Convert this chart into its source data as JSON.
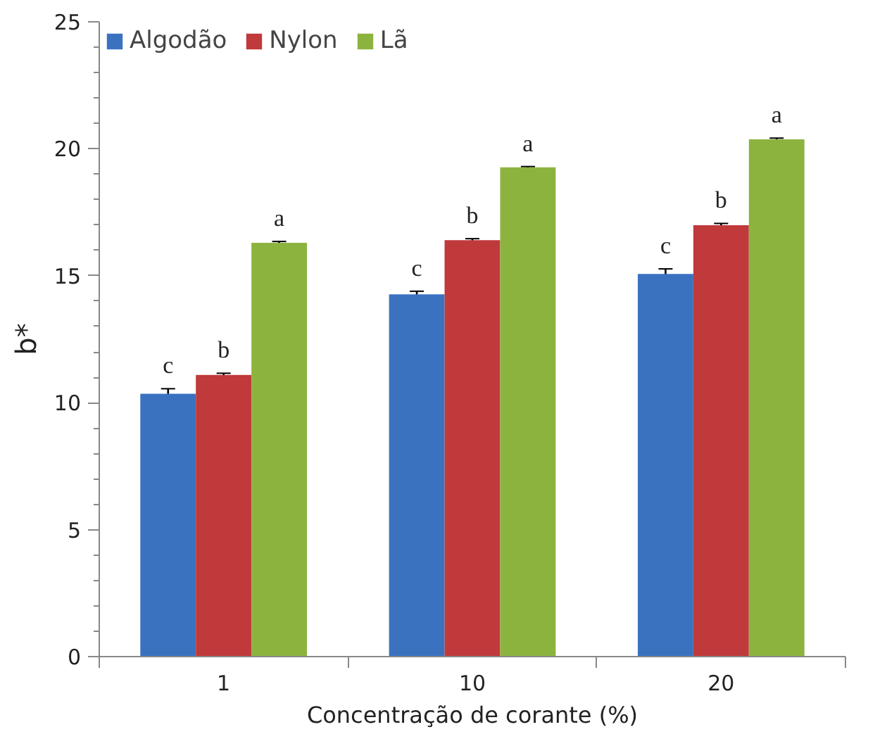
{
  "chart_data": {
    "type": "bar",
    "xlabel": "Concentração de corante (%)",
    "ylabel": "b*",
    "categories": [
      "1",
      "10",
      "20"
    ],
    "series": [
      {
        "name": "Algodão",
        "color": "#3a72c0",
        "values": [
          10.35,
          14.27,
          15.07
        ],
        "errors": [
          0.2,
          0.12,
          0.2
        ],
        "value_labels": [
          "c",
          "c",
          "c"
        ]
      },
      {
        "name": "Nylon",
        "color": "#c0393b",
        "values": [
          11.09,
          16.4,
          16.99
        ],
        "errors": [
          0.07,
          0.06,
          0.07
        ],
        "value_labels": [
          "b",
          "b",
          "b"
        ]
      },
      {
        "name": "Lã",
        "color": "#8db33f",
        "values": [
          16.3,
          19.27,
          20.37
        ],
        "errors": [
          0.05,
          0.03,
          0.05
        ],
        "value_labels": [
          "a",
          "a",
          "a"
        ]
      }
    ],
    "ylim": [
      0,
      25
    ],
    "yticks": [
      0,
      {
        "value": 1,
        "label": null
      },
      {
        "value": 2,
        "label": null
      },
      {
        "value": 3,
        "label": null
      },
      {
        "value": 4,
        "label": null
      },
      5,
      {
        "value": 6,
        "label": null
      },
      {
        "value": 7,
        "label": null
      },
      {
        "value": 8,
        "label": null
      },
      {
        "value": 9,
        "label": null
      },
      10,
      {
        "value": 11,
        "label": null
      },
      {
        "value": 12,
        "label": null
      },
      {
        "value": 13,
        "label": null
      },
      {
        "value": 14,
        "label": null
      },
      15,
      {
        "value": 16,
        "label": null
      },
      {
        "value": 17,
        "label": null
      },
      {
        "value": 18,
        "label": null
      },
      {
        "value": 19,
        "label": null
      },
      20,
      {
        "value": 21,
        "label": null
      },
      {
        "value": 22,
        "label": null
      },
      {
        "value": 23,
        "label": null
      },
      {
        "value": 24,
        "label": null
      },
      25
    ],
    "legend": "top left",
    "grid": false
  }
}
